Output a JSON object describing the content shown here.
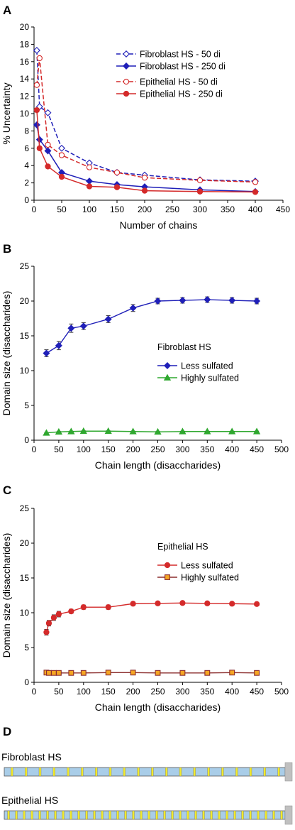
{
  "panels": {
    "a": "A",
    "b": "B",
    "c": "C",
    "d": "D"
  },
  "chart_data": [
    {
      "id": "A",
      "type": "line",
      "xlabel": "Number of chains",
      "ylabel": "% Uncertainty",
      "xlim": [
        0,
        450
      ],
      "ylim": [
        0,
        20
      ],
      "xticks": [
        0,
        50,
        100,
        150,
        200,
        250,
        300,
        350,
        400,
        450
      ],
      "yticks": [
        0,
        2,
        4,
        6,
        8,
        10,
        12,
        14,
        16,
        18,
        20
      ],
      "x": [
        5,
        10,
        25,
        50,
        100,
        150,
        200,
        300,
        400
      ],
      "series": [
        {
          "name": "Fibroblast HS - 50 di",
          "values": [
            17.3,
            10.8,
            10.1,
            6.0,
            4.3,
            3.2,
            2.9,
            2.35,
            2.2
          ],
          "color": "#1f1fb8",
          "dash": true,
          "marker": "diamond",
          "filled": false
        },
        {
          "name": "Fibroblast HS - 250 di",
          "values": [
            8.7,
            7.0,
            5.7,
            3.2,
            2.2,
            1.8,
            1.55,
            1.2,
            1.0
          ],
          "color": "#1f1fb8",
          "dash": false,
          "marker": "diamond",
          "filled": true
        },
        {
          "name": "Epithelial HS - 50 di",
          "values": [
            13.3,
            16.4,
            6.4,
            5.2,
            3.8,
            3.2,
            2.6,
            2.3,
            2.1
          ],
          "color": "#d42a2a",
          "dash": true,
          "marker": "circle",
          "filled": false
        },
        {
          "name": "Epithelial HS - 250 di",
          "values": [
            10.4,
            6.0,
            3.9,
            2.7,
            1.6,
            1.5,
            1.1,
            1.0,
            0.95
          ],
          "color": "#d42a2a",
          "dash": false,
          "marker": "circle",
          "filled": true
        }
      ]
    },
    {
      "id": "B",
      "type": "line",
      "xlabel": "Chain length (disaccharides)",
      "ylabel": "Domain size (disaccharides)",
      "xlim": [
        0,
        500
      ],
      "ylim": [
        0,
        25
      ],
      "xticks": [
        0,
        50,
        100,
        150,
        200,
        250,
        300,
        350,
        400,
        450,
        500
      ],
      "yticks": [
        0,
        5,
        10,
        15,
        20,
        25
      ],
      "legend_title": "Fibroblast HS",
      "series": [
        {
          "name": "Less sulfated",
          "x": [
            25,
            50,
            75,
            100,
            150,
            200,
            250,
            300,
            350,
            400,
            450
          ],
          "values": [
            12.5,
            13.6,
            16.1,
            16.4,
            17.4,
            19.0,
            20.0,
            20.1,
            20.2,
            20.1,
            20.0
          ],
          "errors": [
            0.5,
            0.6,
            0.6,
            0.5,
            0.5,
            0.5,
            0.4,
            0.4,
            0.4,
            0.4,
            0.4
          ],
          "color": "#1f1fb8",
          "marker": "diamond"
        },
        {
          "name": "Highly sulfated",
          "x": [
            25,
            50,
            75,
            100,
            150,
            200,
            250,
            300,
            350,
            400,
            450
          ],
          "values": [
            1.05,
            1.2,
            1.25,
            1.3,
            1.3,
            1.25,
            1.2,
            1.25,
            1.25,
            1.25,
            1.25
          ],
          "errors": [
            0.05,
            0.05,
            0.05,
            0.05,
            0.05,
            0.05,
            0.05,
            0.05,
            0.05,
            0.05,
            0.05
          ],
          "color": "#2fa82f",
          "marker": "triangle"
        }
      ]
    },
    {
      "id": "C",
      "type": "line",
      "xlabel": "Chain length (disaccharides)",
      "ylabel": "Domain size (disaccharides)",
      "xlim": [
        0,
        500
      ],
      "ylim": [
        0,
        25
      ],
      "xticks": [
        0,
        50,
        100,
        150,
        200,
        250,
        300,
        350,
        400,
        450,
        500
      ],
      "yticks": [
        0,
        5,
        10,
        15,
        20,
        25
      ],
      "legend_title": "Epithelial HS",
      "series": [
        {
          "name": "Less sulfated",
          "x": [
            25,
            30,
            40,
            50,
            75,
            100,
            150,
            200,
            250,
            300,
            350,
            400,
            450
          ],
          "values": [
            7.2,
            8.5,
            9.3,
            9.8,
            10.2,
            10.8,
            10.8,
            11.3,
            11.35,
            11.4,
            11.35,
            11.3,
            11.25
          ],
          "errors": [
            0.4,
            0.4,
            0.4,
            0.4,
            0.3,
            0.3,
            0.3,
            0.25,
            0.2,
            0.2,
            0.2,
            0.2,
            0.2
          ],
          "color": "#d42a2a",
          "marker": "circle"
        },
        {
          "name": "Highly sulfated",
          "x": [
            25,
            30,
            40,
            50,
            75,
            100,
            150,
            200,
            250,
            300,
            350,
            400,
            450
          ],
          "values": [
            1.4,
            1.35,
            1.35,
            1.35,
            1.35,
            1.35,
            1.4,
            1.4,
            1.35,
            1.35,
            1.35,
            1.4,
            1.35
          ],
          "errors": [
            0.05,
            0.05,
            0.05,
            0.05,
            0.05,
            0.05,
            0.05,
            0.05,
            0.05,
            0.05,
            0.05,
            0.05,
            0.05
          ],
          "color": "#8b2d2d",
          "fill": "#f5a623",
          "marker": "square"
        }
      ]
    }
  ],
  "schematic": {
    "fibroblast_label": "Fibroblast HS",
    "epithelial_label": "Epithelial HS",
    "bar_color": "#a9cde8",
    "domain_color": "#f2ea2a",
    "end_cap_color": "#c0c0c0",
    "fibroblast_domains": 20,
    "epithelial_domains": 36
  }
}
